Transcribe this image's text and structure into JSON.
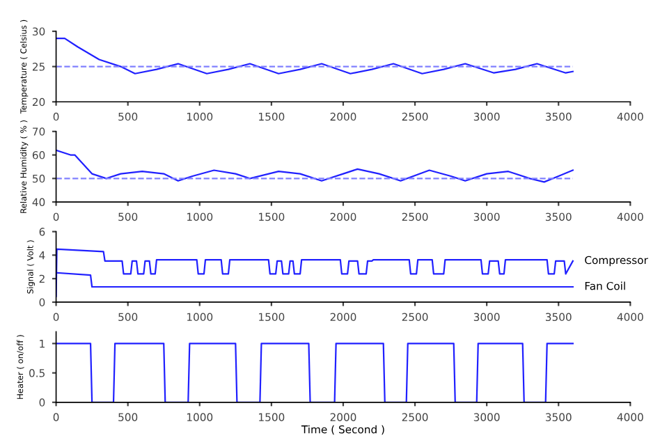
{
  "chart_data": [
    {
      "type": "line",
      "ylabel": "Temperature ( Celsius )",
      "xlim": [
        0,
        4000
      ],
      "ylim": [
        20,
        30
      ],
      "xticks": [
        0,
        500,
        1000,
        1500,
        2000,
        2500,
        3000,
        3500,
        4000
      ],
      "yticks": [
        20,
        25,
        30
      ],
      "grid": false,
      "legend": false,
      "series": [
        {
          "color": "#2020ff",
          "x": [
            0,
            60,
            150,
            300,
            450,
            550,
            700,
            850,
            1050,
            1200,
            1350,
            1550,
            1700,
            1850,
            2050,
            2200,
            2350,
            2550,
            2700,
            2850,
            3050,
            3200,
            3350,
            3550,
            3600
          ],
          "values": [
            29,
            29,
            27.8,
            26,
            25,
            24,
            24.6,
            25.4,
            24,
            24.6,
            25.4,
            24,
            24.6,
            25.4,
            24,
            24.6,
            25.4,
            24,
            24.6,
            25.4,
            24.1,
            24.6,
            25.4,
            24.1,
            24.3
          ]
        },
        {
          "color": "#8080ff",
          "line_style": "dashed",
          "x": [
            0,
            3600
          ],
          "values": [
            25,
            25
          ]
        }
      ]
    },
    {
      "type": "line",
      "ylabel": "Relative Humidity ( % )",
      "xlim": [
        0,
        4000
      ],
      "ylim": [
        40,
        70
      ],
      "xticks": [
        0,
        500,
        1000,
        1500,
        2000,
        2500,
        3000,
        3500,
        4000
      ],
      "yticks": [
        40,
        50,
        60,
        70
      ],
      "grid": false,
      "legend": false,
      "series": [
        {
          "color": "#2020ff",
          "x": [
            0,
            100,
            130,
            250,
            350,
            450,
            600,
            750,
            850,
            950,
            1100,
            1250,
            1350,
            1550,
            1700,
            1850,
            2000,
            2100,
            2250,
            2400,
            2600,
            2750,
            2850,
            3000,
            3150,
            3300,
            3400,
            3500,
            3600
          ],
          "values": [
            62,
            60,
            60,
            52,
            50,
            52,
            53,
            52,
            49,
            51,
            53.5,
            52,
            50,
            53,
            52,
            49,
            52,
            54,
            52,
            49,
            53.5,
            51,
            49,
            52,
            53,
            50,
            48.5,
            51,
            53.5
          ]
        },
        {
          "color": "#8080ff",
          "line_style": "dashed",
          "x": [
            0,
            3600
          ],
          "values": [
            50,
            50
          ]
        }
      ]
    },
    {
      "type": "line",
      "ylabel": "Signal ( Volt )",
      "xlim": [
        0,
        4000
      ],
      "ylim": [
        0,
        6
      ],
      "xticks": [
        0,
        500,
        1000,
        1500,
        2000,
        2500,
        3000,
        3500,
        4000
      ],
      "yticks": [
        0,
        2,
        4,
        6
      ],
      "grid": false,
      "legend": false,
      "series": [
        {
          "name": "Compressor",
          "color": "#2020ff",
          "x": [
            0,
            5,
            10,
            330,
            340,
            460,
            470,
            520,
            530,
            560,
            570,
            610,
            620,
            650,
            660,
            690,
            700,
            980,
            990,
            1030,
            1040,
            1150,
            1160,
            1200,
            1210,
            1480,
            1490,
            1530,
            1540,
            1570,
            1580,
            1620,
            1630,
            1650,
            1660,
            1700,
            1710,
            1980,
            1990,
            2030,
            2040,
            2100,
            2110,
            2160,
            2170,
            2200,
            2210,
            2460,
            2470,
            2510,
            2520,
            2620,
            2630,
            2700,
            2710,
            2960,
            2970,
            3010,
            3020,
            3080,
            3090,
            3120,
            3130,
            3420,
            3430,
            3470,
            3480,
            3540,
            3550,
            3600
          ],
          "values": [
            0.5,
            4.5,
            4.5,
            4.3,
            3.5,
            3.5,
            2.4,
            2.4,
            3.5,
            3.5,
            2.4,
            2.4,
            3.5,
            3.5,
            2.4,
            2.4,
            3.6,
            3.6,
            2.4,
            2.4,
            3.6,
            3.6,
            2.4,
            2.4,
            3.6,
            3.6,
            2.4,
            2.4,
            3.5,
            3.5,
            2.4,
            2.4,
            3.5,
            3.5,
            2.4,
            2.4,
            3.6,
            3.6,
            2.4,
            2.4,
            3.5,
            3.5,
            2.4,
            2.4,
            3.5,
            3.5,
            3.6,
            3.6,
            2.4,
            2.4,
            3.6,
            3.6,
            2.4,
            2.4,
            3.6,
            3.6,
            2.4,
            2.4,
            3.5,
            3.5,
            2.4,
            2.4,
            3.6,
            3.6,
            2.4,
            2.4,
            3.5,
            3.5,
            2.4,
            3.5
          ]
        },
        {
          "name": "Fan Coil",
          "color": "#2020ff",
          "x": [
            5,
            240,
            250,
            3600
          ],
          "values": [
            2.5,
            2.3,
            1.3,
            1.3
          ]
        }
      ]
    },
    {
      "type": "line",
      "ylabel": "Heater ( on/off )",
      "xlabel": "Time ( Second )",
      "xlim": [
        0,
        4000
      ],
      "ylim": [
        0,
        1.2
      ],
      "xticks": [
        0,
        500,
        1000,
        1500,
        2000,
        2500,
        3000,
        3500,
        4000
      ],
      "yticks": [
        0,
        0.5,
        1
      ],
      "grid": false,
      "legend": false,
      "series": [
        {
          "color": "#2020ff",
          "x": [
            0,
            240,
            250,
            400,
            410,
            750,
            760,
            920,
            930,
            1250,
            1260,
            1420,
            1430,
            1760,
            1770,
            1940,
            1950,
            2280,
            2290,
            2440,
            2450,
            2770,
            2780,
            2930,
            2940,
            3250,
            3260,
            3410,
            3420,
            3600
          ],
          "values": [
            1,
            1,
            0,
            0,
            1,
            1,
            0,
            0,
            1,
            1,
            0,
            0,
            1,
            1,
            0,
            0,
            1,
            1,
            0,
            0,
            1,
            1,
            0,
            0,
            1,
            1,
            0,
            0,
            1,
            1
          ]
        }
      ]
    }
  ]
}
